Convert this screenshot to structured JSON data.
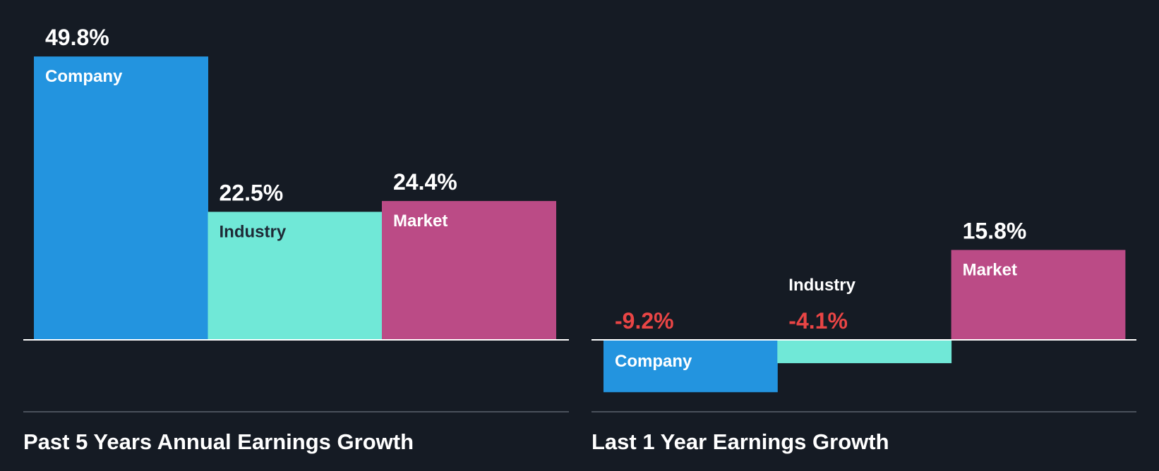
{
  "chart_data": [
    {
      "type": "bar",
      "title": "Past 5 Years Annual Earnings Growth",
      "categories": [
        "Company",
        "Industry",
        "Market"
      ],
      "values": [
        49.8,
        22.5,
        24.4
      ],
      "value_labels": [
        "49.8%",
        "22.5%",
        "24.4%"
      ],
      "unit": "%"
    },
    {
      "type": "bar",
      "title": "Last 1 Year Earnings Growth",
      "categories": [
        "Company",
        "Industry",
        "Market"
      ],
      "values": [
        -9.2,
        -4.1,
        15.8
      ],
      "value_labels": [
        "-9.2%",
        "-4.1%",
        "15.8%"
      ],
      "unit": "%"
    }
  ],
  "colors": {
    "background": "#151b24",
    "company": "#2394df",
    "industry": "#70e8d7",
    "market": "#bb4b86",
    "positive_text": "#ffffff",
    "negative_text": "#e94545",
    "baseline": "#ffffff",
    "divider": "#4a515b"
  }
}
